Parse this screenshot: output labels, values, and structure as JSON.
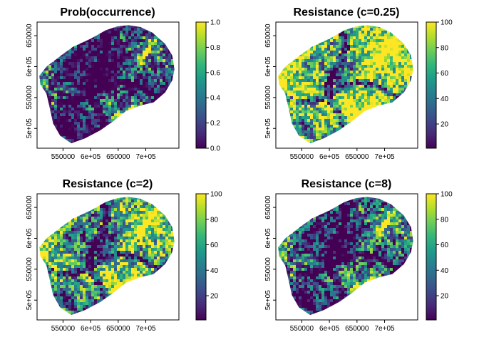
{
  "chart_data": [
    {
      "type": "heatmap",
      "title": "Prob(occurrence)",
      "xlabel": "",
      "ylabel": "",
      "x_ticks": [
        "550000",
        "6e+05",
        "650000",
        "7e+05"
      ],
      "x_tick_values": [
        550000,
        600000,
        650000,
        700000
      ],
      "y_ticks": [
        "5e+05",
        "550000",
        "6e+05",
        "650000"
      ],
      "y_tick_values": [
        500000,
        550000,
        600000,
        650000
      ],
      "xlim": [
        503000,
        760000
      ],
      "ylim": [
        468000,
        672000
      ],
      "colorbar": {
        "ticks": [
          "0.0",
          "0.2",
          "0.4",
          "0.6",
          "0.8",
          "1.0"
        ],
        "tick_values": [
          0,
          0.2,
          0.4,
          0.6,
          0.8,
          1.0
        ],
        "range": [
          0,
          1
        ]
      },
      "colormap": "viridis",
      "mean_level": 0.28,
      "contrast": 1.0,
      "seed": 11
    },
    {
      "type": "heatmap",
      "title": "Resistance (c=0.25)",
      "xlabel": "",
      "ylabel": "",
      "x_ticks": [
        "550000",
        "6e+05",
        "650000",
        "7e+05"
      ],
      "x_tick_values": [
        550000,
        600000,
        650000,
        700000
      ],
      "y_ticks": [
        "5e+05",
        "550000",
        "6e+05",
        "650000"
      ],
      "y_tick_values": [
        500000,
        550000,
        600000,
        650000
      ],
      "xlim": [
        503000,
        760000
      ],
      "ylim": [
        468000,
        672000
      ],
      "colorbar": {
        "ticks": [
          "20",
          "40",
          "60",
          "80",
          "100"
        ],
        "tick_values": [
          20,
          40,
          60,
          80,
          100
        ],
        "range": [
          1,
          100
        ]
      },
      "colormap": "viridis",
      "mean_level": 0.82,
      "contrast": 1.0,
      "seed": 11
    },
    {
      "type": "heatmap",
      "title": "Resistance (c=2)",
      "xlabel": "",
      "ylabel": "",
      "x_ticks": [
        "550000",
        "6e+05",
        "650000",
        "7e+05"
      ],
      "x_tick_values": [
        550000,
        600000,
        650000,
        700000
      ],
      "y_ticks": [
        "5e+05",
        "550000",
        "6e+05",
        "650000"
      ],
      "y_tick_values": [
        500000,
        550000,
        600000,
        650000
      ],
      "xlim": [
        503000,
        760000
      ],
      "ylim": [
        468000,
        672000
      ],
      "colorbar": {
        "ticks": [
          "20",
          "40",
          "60",
          "80",
          "100"
        ],
        "tick_values": [
          20,
          40,
          60,
          80,
          100
        ],
        "range": [
          1,
          100
        ]
      },
      "colormap": "viridis",
      "mean_level": 0.62,
      "contrast": 1.0,
      "seed": 11
    },
    {
      "type": "heatmap",
      "title": "Resistance (c=8)",
      "xlabel": "",
      "ylabel": "",
      "x_ticks": [
        "550000",
        "6e+05",
        "650000",
        "7e+05"
      ],
      "x_tick_values": [
        550000,
        600000,
        650000,
        700000
      ],
      "y_ticks": [
        "5e+05",
        "550000",
        "6e+05",
        "650000"
      ],
      "y_tick_values": [
        500000,
        550000,
        600000,
        650000
      ],
      "xlim": [
        503000,
        760000
      ],
      "ylim": [
        468000,
        672000
      ],
      "colorbar": {
        "ticks": [
          "20",
          "40",
          "60",
          "80",
          "100"
        ],
        "tick_values": [
          20,
          40,
          60,
          80,
          100
        ],
        "range": [
          1,
          100
        ]
      },
      "colormap": "viridis",
      "mean_level": 0.3,
      "contrast": 1.0,
      "seed": 11
    }
  ],
  "colors": {
    "viridis": [
      "#440154",
      "#482878",
      "#3e4989",
      "#31688e",
      "#26828e",
      "#1f9e89",
      "#35b779",
      "#6ece58",
      "#b5de2b",
      "#fde725"
    ]
  }
}
